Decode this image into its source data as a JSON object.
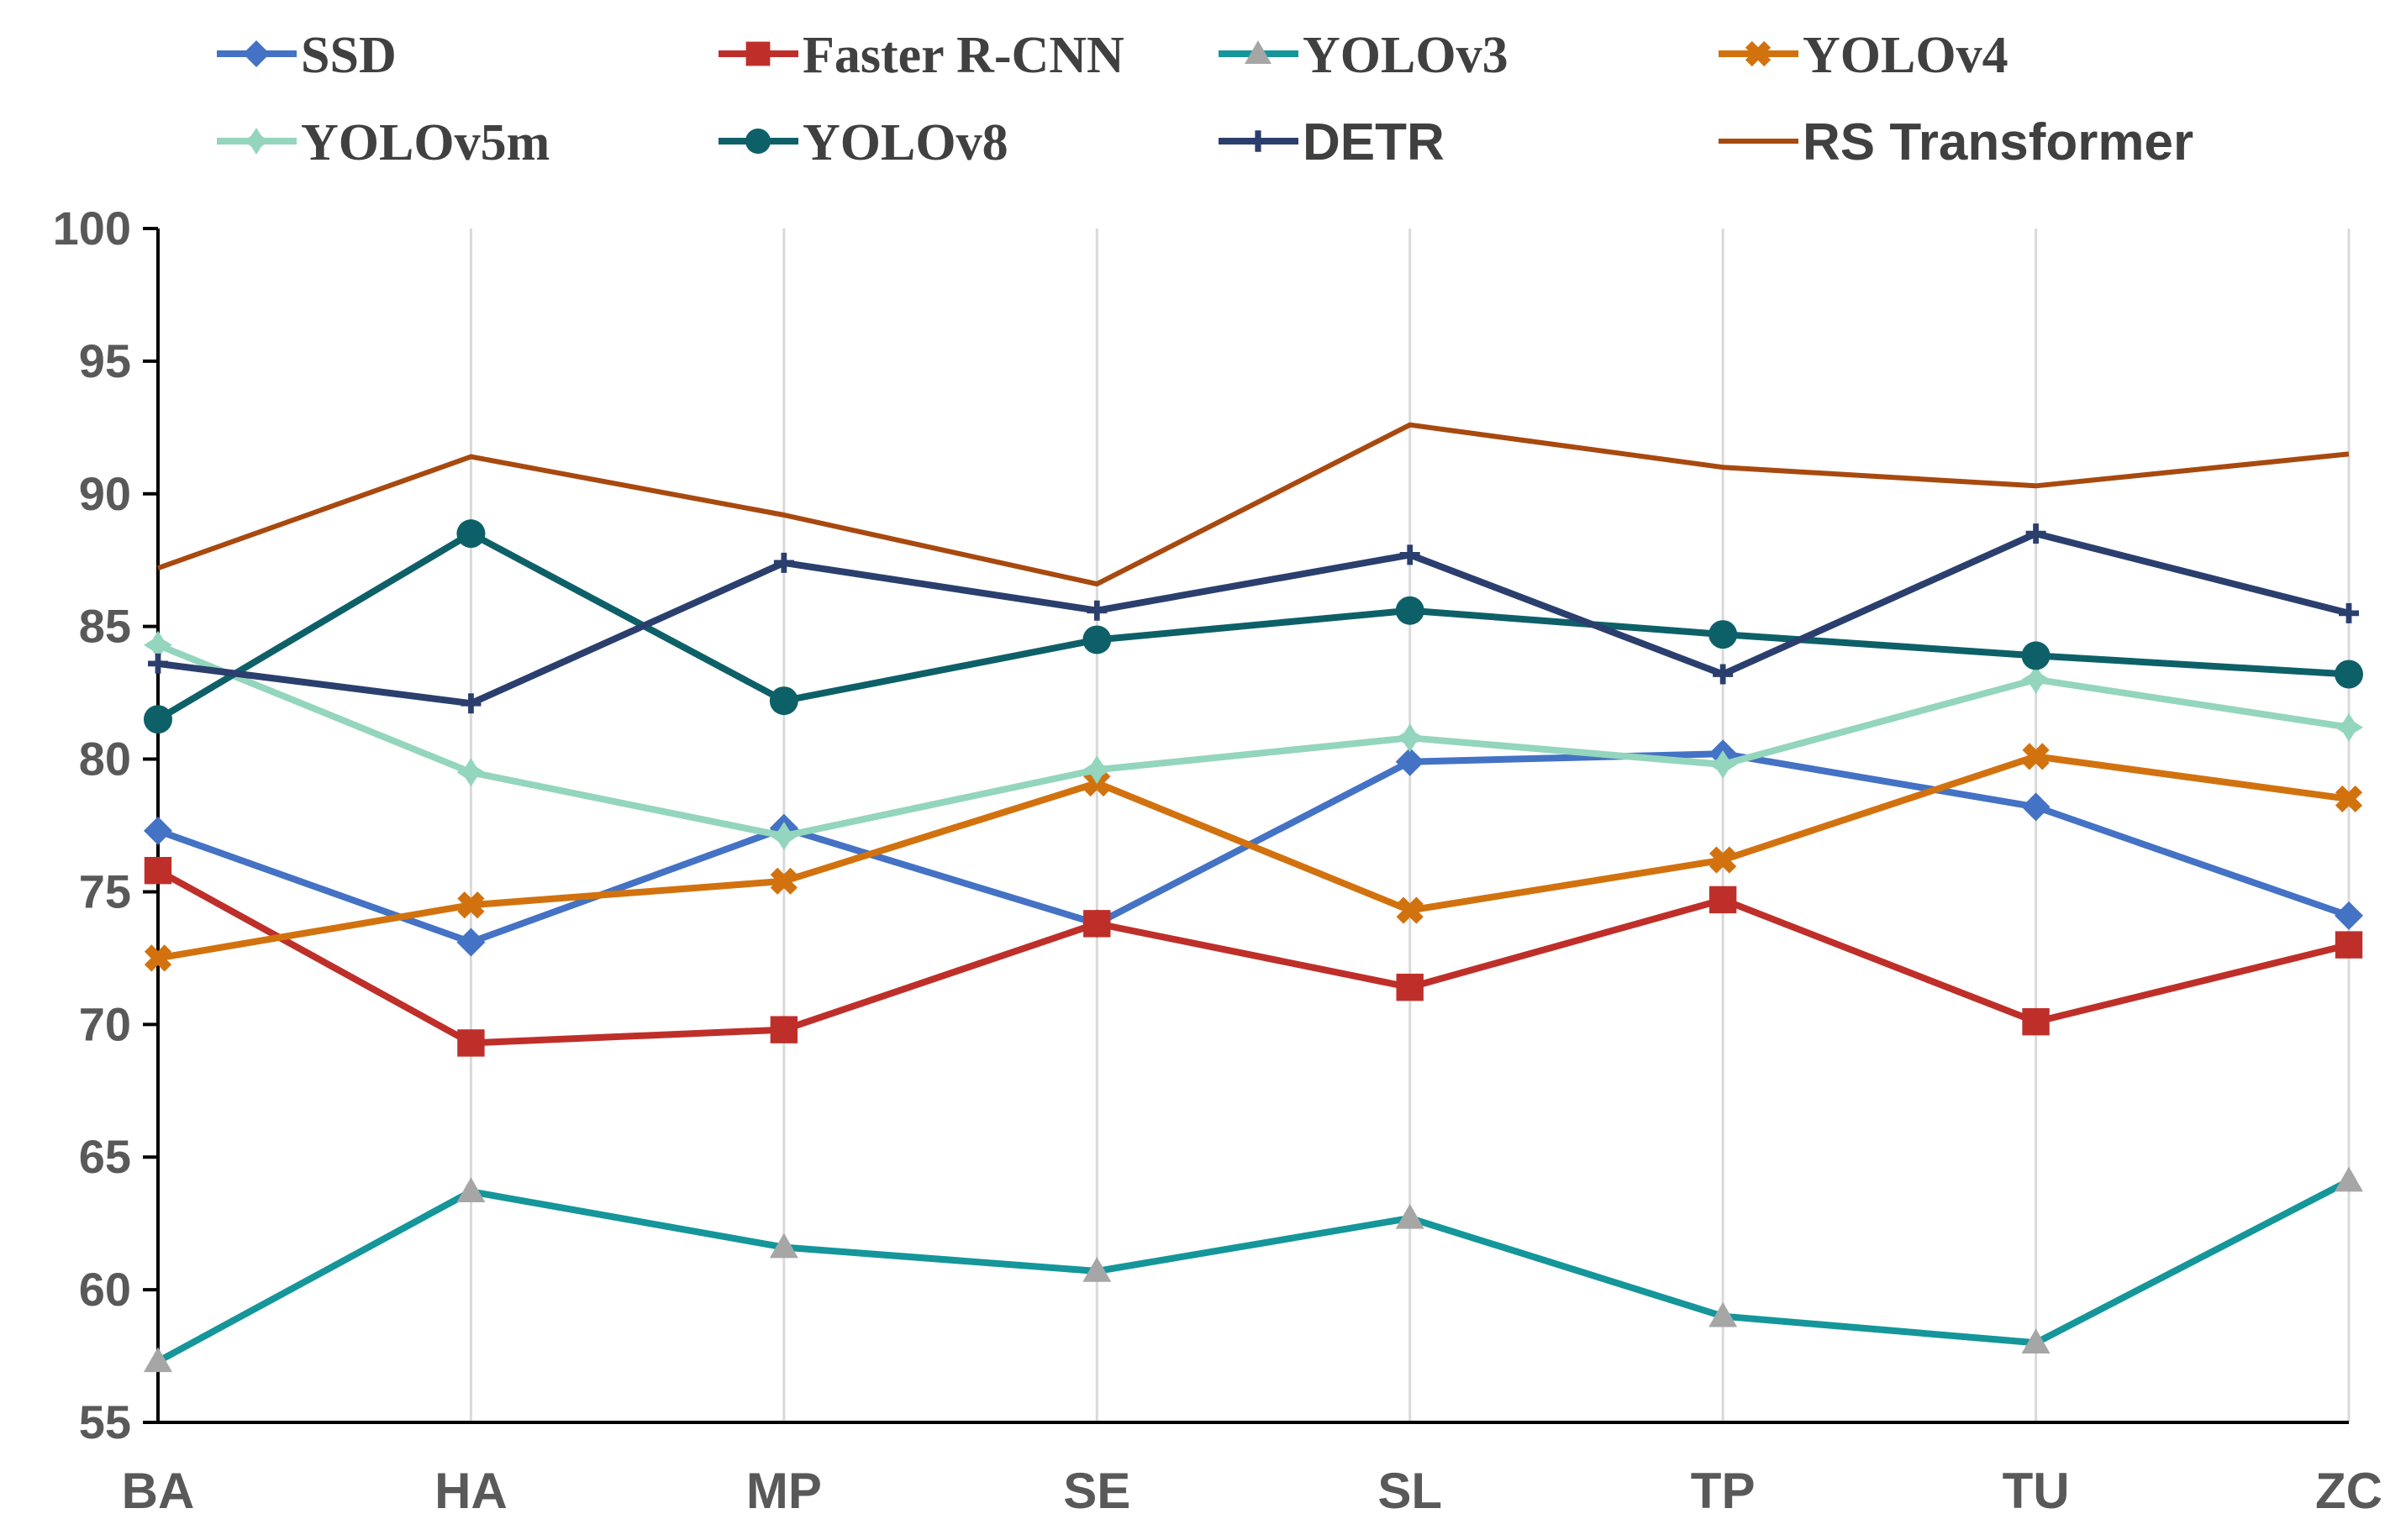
{
  "chart_data": {
    "type": "line",
    "title": "",
    "xlabel": "",
    "ylabel": "",
    "categories": [
      "BA",
      "HA",
      "MP",
      "SE",
      "SL",
      "TP",
      "TU",
      "ZC"
    ],
    "ylim": [
      55,
      100
    ],
    "yticks": [
      55,
      60,
      65,
      70,
      75,
      80,
      85,
      90,
      95,
      100
    ],
    "y_tick_labels": [
      "55",
      "60",
      "65",
      "70",
      "75",
      "80",
      "85",
      "90",
      "95",
      "100"
    ],
    "grid": "vertical",
    "legend_position": "top",
    "series": [
      {
        "name": "SSD",
        "color": "#4472C4",
        "marker": "diamond",
        "values": [
          77.3,
          73.1,
          77.4,
          73.8,
          79.9,
          80.2,
          78.2,
          74.1
        ]
      },
      {
        "name": "Faster R-CNN",
        "color": "#BF2F2A",
        "marker": "square",
        "values": [
          75.8,
          69.3,
          69.8,
          73.8,
          71.4,
          74.7,
          70.1,
          73.0
        ]
      },
      {
        "name": "YOLOv3",
        "color": "#14969A",
        "marker": "triangle",
        "marker_color": "#A6A6A6",
        "values": [
          57.3,
          63.7,
          61.6,
          60.7,
          62.7,
          59.0,
          58.0,
          64.1
        ]
      },
      {
        "name": "YOLOv4",
        "color": "#D2720F",
        "marker": "x",
        "values": [
          72.5,
          74.5,
          75.4,
          79.1,
          74.3,
          76.2,
          80.1,
          78.5
        ]
      },
      {
        "name": "YOLOv5m",
        "color": "#93D5BD",
        "marker": "star",
        "values": [
          84.3,
          79.5,
          77.1,
          79.6,
          80.8,
          79.8,
          83.0,
          81.2
        ]
      },
      {
        "name": "YOLOv8",
        "color": "#0E6068",
        "marker": "circle",
        "values": [
          81.5,
          88.5,
          82.2,
          84.5,
          85.6,
          84.7,
          83.9,
          83.2
        ]
      },
      {
        "name": "DETR",
        "color": "#2B3F6E",
        "marker": "plus",
        "values": [
          83.6,
          82.1,
          87.4,
          85.6,
          87.7,
          83.2,
          88.5,
          85.5
        ]
      },
      {
        "name": "RS Transformer",
        "color": "#A8490F",
        "marker": "none",
        "values": [
          87.2,
          91.4,
          89.2,
          86.6,
          92.6,
          91.0,
          90.3,
          91.5
        ]
      }
    ]
  }
}
